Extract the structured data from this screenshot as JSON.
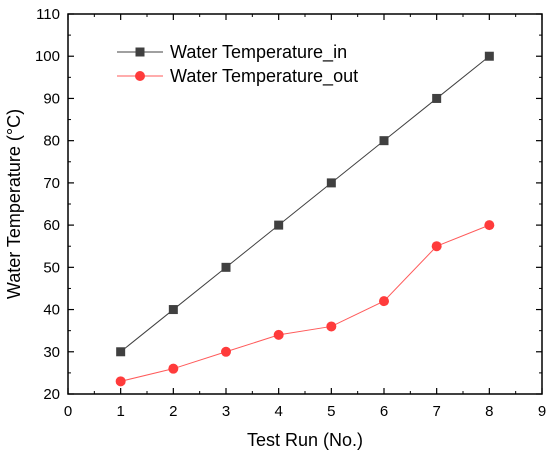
{
  "chart_data": {
    "type": "line",
    "title": "",
    "xlabel": "Test Run (No.)",
    "ylabel": "Water Temperature (°C)",
    "xlim": [
      0,
      9
    ],
    "ylim": [
      20,
      110
    ],
    "xticks": [
      0,
      1,
      2,
      3,
      4,
      5,
      6,
      7,
      8,
      9
    ],
    "yticks": [
      20,
      30,
      40,
      50,
      60,
      70,
      80,
      90,
      100,
      110
    ],
    "grid": false,
    "legend_position": "top-left",
    "x": [
      1,
      2,
      3,
      4,
      5,
      6,
      7,
      8
    ],
    "series": [
      {
        "name": "Water Temperature_in",
        "values": [
          30,
          40,
          50,
          60,
          70,
          80,
          90,
          100
        ],
        "marker": "square",
        "marker_color": "#404040",
        "line_color": "#404040"
      },
      {
        "name": "Water Temperature_out",
        "values": [
          23,
          26,
          30,
          34,
          36,
          42,
          55,
          60
        ],
        "marker": "circle",
        "marker_color": "#ff3b3b",
        "line_color": "#ff5a5a"
      }
    ]
  }
}
